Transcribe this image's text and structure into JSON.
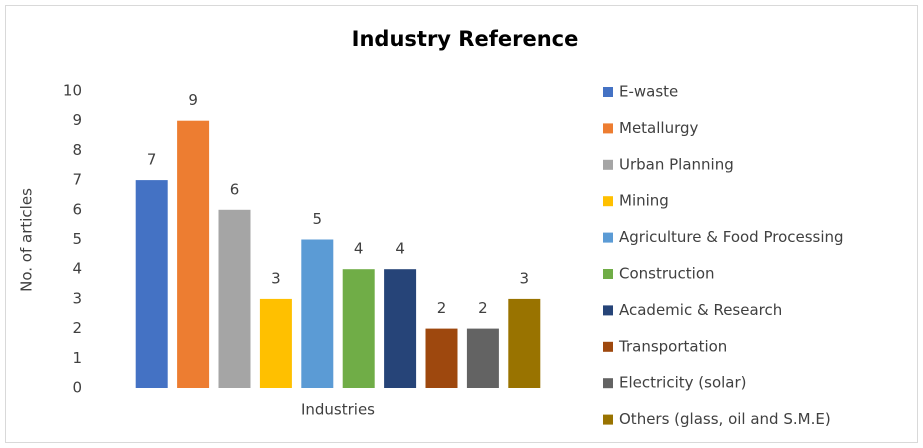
{
  "chart_data": {
    "type": "bar",
    "title": "Industry Reference",
    "xlabel": "Industries",
    "ylabel": "No. of articles",
    "categories": [
      "E-waste",
      "Metallurgy",
      "Urban Planning",
      "Mining",
      "Agriculture & Food Processing",
      "Construction",
      "Academic & Research",
      "Transportation",
      "Electricity (solar)",
      "Others (glass, oil and S.M.E)"
    ],
    "values": [
      7,
      9,
      6,
      3,
      5,
      4,
      4,
      2,
      2,
      3
    ],
    "colors": [
      "#4472c4",
      "#ed7d31",
      "#a5a5a5",
      "#ffc000",
      "#5b9bd5",
      "#70ad47",
      "#264478",
      "#9e480e",
      "#636363",
      "#997300"
    ],
    "ylim": [
      0,
      10
    ],
    "yticks": [
      0,
      1,
      2,
      3,
      4,
      5,
      6,
      7,
      8,
      9,
      10
    ],
    "grid": false,
    "legend": "right"
  }
}
